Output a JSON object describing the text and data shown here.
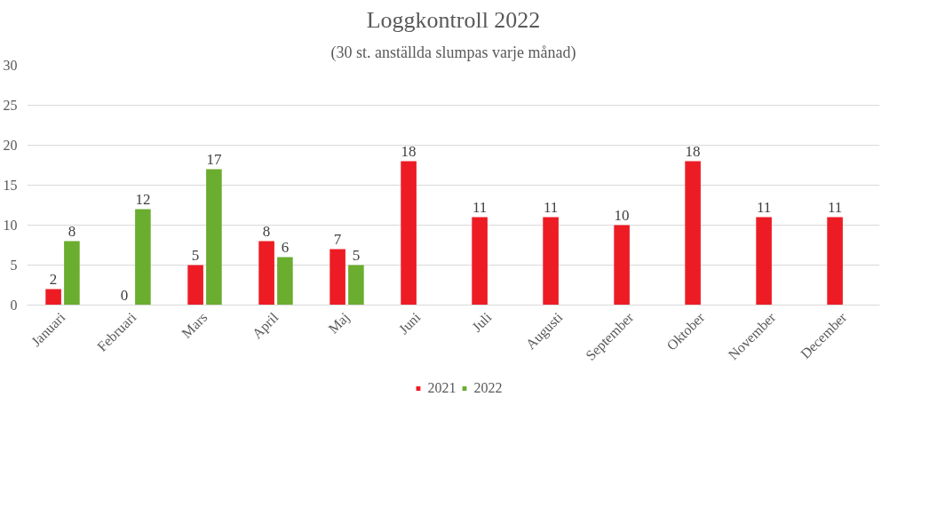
{
  "chart_data": {
    "type": "bar",
    "title": "Loggkontroll 2022",
    "subtitle": "(30 st. anställda slumpas varje månad)",
    "categories": [
      "Januari",
      "Februari",
      "Mars",
      "April",
      "Maj",
      "Juni",
      "Juli",
      "Augusti",
      "September",
      "Oktober",
      "November",
      "December"
    ],
    "series": [
      {
        "name": "2021",
        "color": "#ed1c24",
        "values": [
          2,
          0,
          5,
          8,
          7,
          18,
          11,
          11,
          10,
          18,
          11,
          11
        ]
      },
      {
        "name": "2022",
        "color": "#6aad2f",
        "values": [
          8,
          12,
          17,
          6,
          5,
          null,
          null,
          null,
          null,
          null,
          null,
          null
        ]
      }
    ],
    "ylim": [
      0,
      30
    ],
    "yticks": [
      0,
      5,
      10,
      15,
      20,
      25,
      30
    ],
    "grid": "y",
    "legend": "bottom",
    "data_labels": true
  }
}
